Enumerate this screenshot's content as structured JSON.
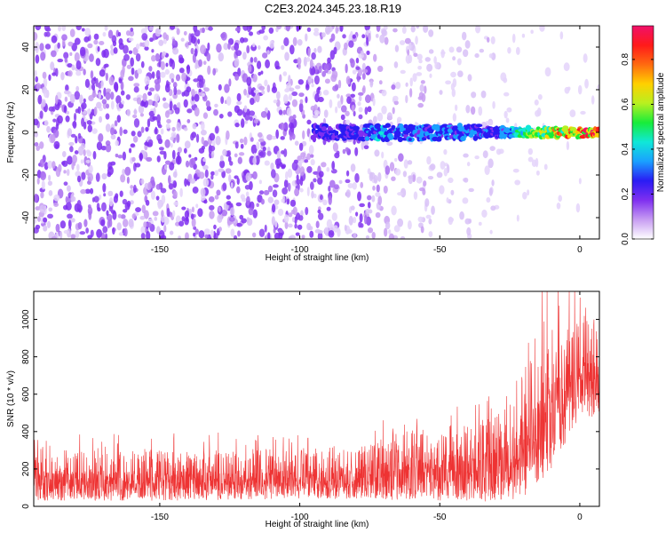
{
  "title": "C2E3.2024.345.23.18.R19",
  "chart_data": [
    {
      "type": "heatmap",
      "xlabel": "Height of straight line (km)",
      "ylabel": "Frequency (Hz)",
      "xlim": [
        -195,
        7
      ],
      "ylim": [
        -50,
        50
      ],
      "x_ticks": [
        -150,
        -100,
        -50,
        0
      ],
      "y_ticks": [
        -40,
        -20,
        0,
        20,
        40
      ],
      "colorbar": {
        "label": "Normalized spectral amplitude",
        "range": [
          0,
          0.95
        ],
        "ticks": [
          0.0,
          0.2,
          0.4,
          0.6,
          0.8
        ],
        "colors": [
          "#ffffff",
          "#c79cf2",
          "#7f2ff0",
          "#2a1cf4",
          "#1aa0ff",
          "#10e8d8",
          "#18ec3a",
          "#b8f020",
          "#ffd000",
          "#ff6a10",
          "#ff1a1a",
          "#f0106a"
        ]
      },
      "signal_band": {
        "frequency": 0,
        "half_width": 3,
        "x_range": [
          -95,
          7
        ],
        "amplitude_at_x": [
          {
            "x": -95,
            "amplitude": 0.25
          },
          {
            "x": -80,
            "amplitude": 0.3
          },
          {
            "x": -70,
            "amplitude": 0.4
          },
          {
            "x": -55,
            "amplitude": 0.35
          },
          {
            "x": -40,
            "amplitude": 0.35
          },
          {
            "x": -30,
            "amplitude": 0.3
          },
          {
            "x": -20,
            "amplitude": 0.55
          },
          {
            "x": -10,
            "amplitude": 0.75
          },
          {
            "x": 0,
            "amplitude": 0.9
          },
          {
            "x": 7,
            "amplitude": 0.95
          }
        ]
      },
      "background_noise_amplitude": 0.15
    },
    {
      "type": "line",
      "xlabel": "Height of straight line (km)",
      "ylabel": "SNR (10 * v/v)",
      "xlim": [
        -195,
        7
      ],
      "ylim": [
        0,
        1150
      ],
      "x_ticks": [
        -150,
        -100,
        -50,
        0
      ],
      "y_ticks": [
        0,
        200,
        400,
        600,
        800,
        1000
      ],
      "color": "#ee3333",
      "envelope": [
        {
          "x": -195,
          "low": 30,
          "high": 300
        },
        {
          "x": -150,
          "low": 30,
          "high": 300
        },
        {
          "x": -100,
          "low": 40,
          "high": 310
        },
        {
          "x": -75,
          "low": 40,
          "high": 340
        },
        {
          "x": -60,
          "low": 30,
          "high": 420
        },
        {
          "x": -40,
          "low": 30,
          "high": 440
        },
        {
          "x": -30,
          "low": 20,
          "high": 500
        },
        {
          "x": -20,
          "low": 40,
          "high": 750
        },
        {
          "x": -10,
          "low": 200,
          "high": 950
        },
        {
          "x": 0,
          "low": 480,
          "high": 1000
        },
        {
          "x": 7,
          "low": 480,
          "high": 1000
        }
      ],
      "peak_value": 1150
    }
  ]
}
